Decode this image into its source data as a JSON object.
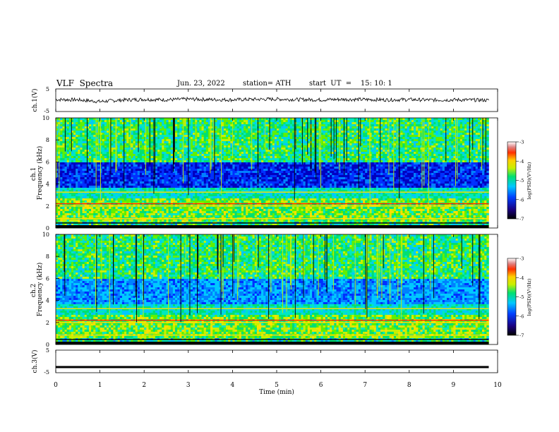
{
  "header": {
    "title": "VLF  Spectra",
    "date": "Jun. 23, 2022",
    "station": "station= ATH",
    "start": "start  UT  =    15: 10: 1"
  },
  "colors": {
    "spec_low": "#000080",
    "spec_mid": "#00c8c8",
    "spec_high": "#ff0000",
    "trace": "#000000"
  },
  "chart_data": [
    {
      "id": "ch1-waveform",
      "type": "line",
      "ylabel": "ch.1(V)",
      "ylim": [
        -5,
        5
      ],
      "yticks": [
        "5",
        "-5"
      ],
      "xlim": [
        0,
        10
      ],
      "note_values": "continuous noisy waveform near 0 V, range approx -1.5 to 1.5 V",
      "x": [
        0,
        0.5,
        1,
        1.5,
        2,
        2.5,
        3,
        3.5,
        4,
        4.5,
        5,
        5.5,
        6,
        6.5,
        7,
        7.5,
        8,
        8.5,
        9,
        9.5,
        9.8
      ],
      "values": [
        0.3,
        0.2,
        -0.6,
        0.1,
        0.4,
        0.2,
        0.5,
        0.3,
        0.2,
        0.4,
        0.5,
        0.3,
        0.2,
        0.4,
        0.3,
        0.2,
        0.3,
        0.1,
        0.2,
        0.1,
        0.0
      ]
    },
    {
      "id": "ch1-spectrogram",
      "type": "heatmap",
      "ylabel": "ch.1\nFrequency (kHz)",
      "ylim": [
        0,
        10
      ],
      "yticks": [
        "0",
        "2",
        "4",
        "6",
        "8",
        "10"
      ],
      "xlim": [
        0,
        10
      ],
      "colorbar": {
        "label": "log(PSD)(V²/Hz)",
        "ticks": [
          "-3",
          "-4",
          "-5",
          "-6",
          "-7"
        ],
        "range": [
          -7,
          -3
        ]
      }
    },
    {
      "id": "ch2-spectrogram",
      "type": "heatmap",
      "ylabel": "ch.2\nFrequency (kHz)",
      "ylim": [
        0,
        10
      ],
      "yticks": [
        "0",
        "2",
        "4",
        "6",
        "8",
        "10"
      ],
      "xlim": [
        0,
        10
      ],
      "colorbar": {
        "label": "log(PSD)(V²/Hz)",
        "ticks": [
          "-3",
          "-4",
          "-5",
          "-6",
          "-7"
        ],
        "range": [
          -7,
          -3
        ]
      }
    },
    {
      "id": "ch3-waveform",
      "type": "line",
      "ylabel": "ch.3(V)",
      "ylim": [
        -5,
        5
      ],
      "yticks": [
        "5",
        "-5"
      ],
      "xlim": [
        0,
        10
      ],
      "x": [
        0,
        9.8
      ],
      "values": [
        -2.5,
        -2.5
      ]
    }
  ],
  "xaxis": {
    "label": "Time  (min)",
    "ticks": [
      "0",
      "1",
      "2",
      "3",
      "4",
      "5",
      "6",
      "7",
      "8",
      "9",
      "10"
    ]
  },
  "colorbar_label": "log(PSD)(V²/Hz)"
}
